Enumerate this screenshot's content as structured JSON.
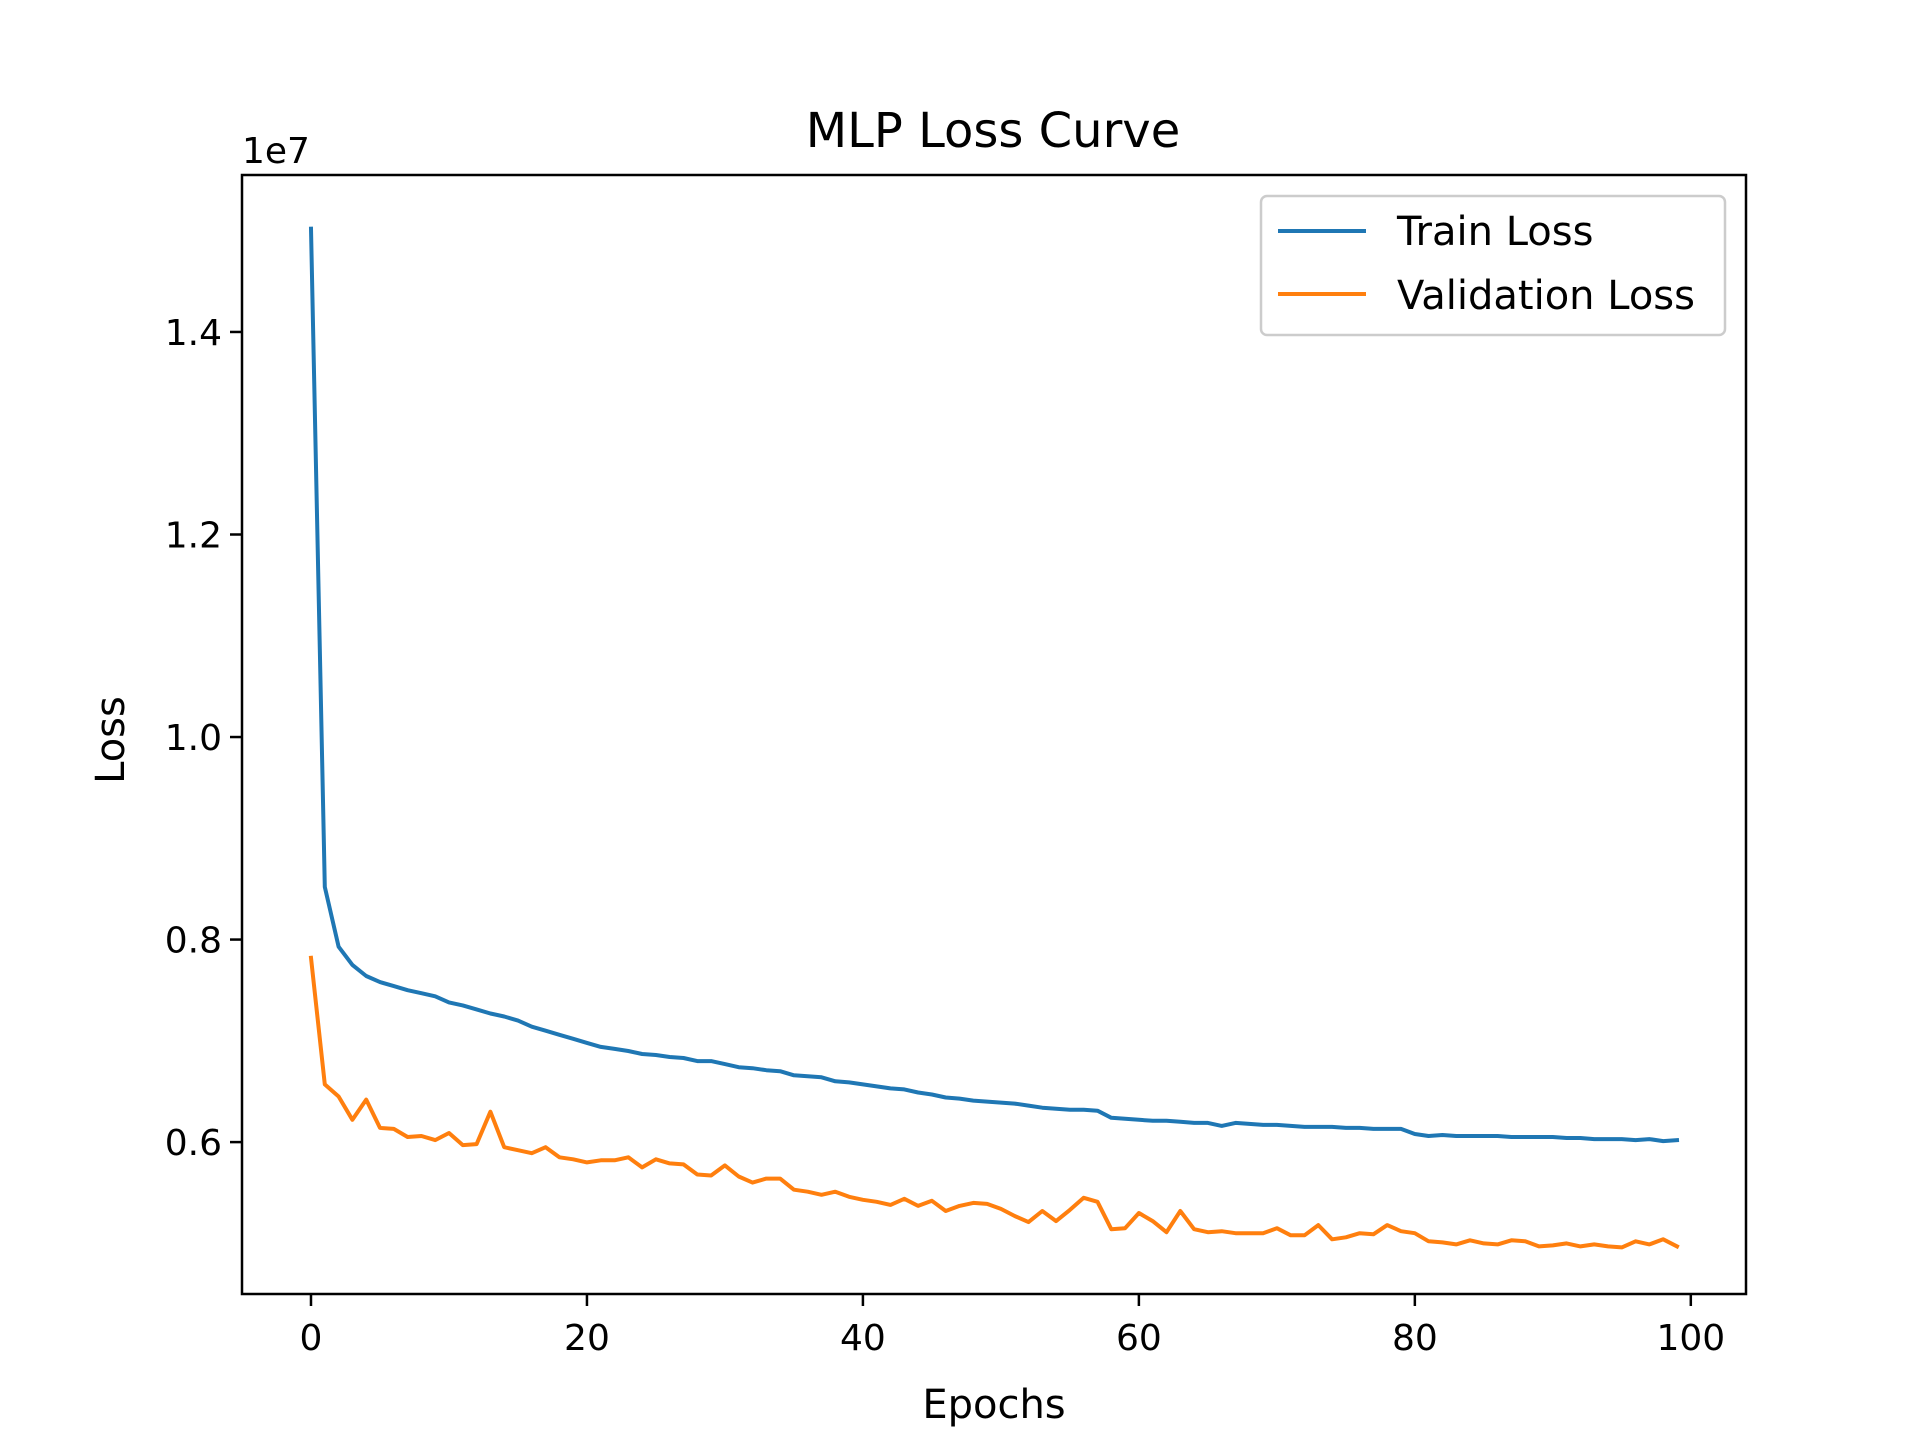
{
  "chart_data": {
    "type": "line",
    "title": "MLP Loss Curve",
    "xlabel": "Epochs",
    "ylabel": "Loss",
    "y_offset_label": "1e7",
    "xlim": [
      -5,
      104
    ],
    "ylim": [
      0.45,
      1.555
    ],
    "xticks": [
      0,
      20,
      40,
      60,
      80,
      100
    ],
    "xtick_labels": [
      "0",
      "20",
      "40",
      "60",
      "80",
      "100"
    ],
    "yticks": [
      0.6,
      0.8,
      1.0,
      1.2,
      1.4
    ],
    "ytick_labels": [
      "0.6",
      "0.8",
      "1.0",
      "1.2",
      "1.4"
    ],
    "grid": false,
    "legend_position": "top-right",
    "x": [
      0,
      1,
      2,
      3,
      4,
      5,
      6,
      7,
      8,
      9,
      10,
      11,
      12,
      13,
      14,
      15,
      16,
      17,
      18,
      19,
      20,
      21,
      22,
      23,
      24,
      25,
      26,
      27,
      28,
      29,
      30,
      31,
      32,
      33,
      34,
      35,
      36,
      37,
      38,
      39,
      40,
      41,
      42,
      43,
      44,
      45,
      46,
      47,
      48,
      49,
      50,
      51,
      52,
      53,
      54,
      55,
      56,
      57,
      58,
      59,
      60,
      61,
      62,
      63,
      64,
      65,
      66,
      67,
      68,
      69,
      70,
      71,
      72,
      73,
      74,
      75,
      76,
      77,
      78,
      79,
      80,
      81,
      82,
      83,
      84,
      85,
      86,
      87,
      88,
      89,
      90,
      91,
      92,
      93,
      94,
      95,
      96,
      97,
      98,
      99
    ],
    "series": [
      {
        "name": "Train Loss",
        "color": "#1f77b4",
        "values": [
          1.502,
          0.852,
          0.793,
          0.775,
          0.764,
          0.758,
          0.754,
          0.75,
          0.747,
          0.744,
          0.738,
          0.735,
          0.731,
          0.727,
          0.724,
          0.72,
          0.714,
          0.71,
          0.706,
          0.702,
          0.698,
          0.694,
          0.692,
          0.69,
          0.687,
          0.686,
          0.684,
          0.683,
          0.68,
          0.68,
          0.677,
          0.674,
          0.673,
          0.671,
          0.67,
          0.666,
          0.665,
          0.664,
          0.66,
          0.659,
          0.657,
          0.655,
          0.653,
          0.652,
          0.649,
          0.647,
          0.644,
          0.643,
          0.641,
          0.64,
          0.639,
          0.638,
          0.636,
          0.634,
          0.633,
          0.632,
          0.632,
          0.631,
          0.624,
          0.623,
          0.622,
          0.621,
          0.621,
          0.62,
          0.619,
          0.619,
          0.616,
          0.619,
          0.618,
          0.617,
          0.617,
          0.616,
          0.615,
          0.615,
          0.615,
          0.614,
          0.614,
          0.613,
          0.613,
          0.613,
          0.608,
          0.606,
          0.607,
          0.606,
          0.606,
          0.606,
          0.606,
          0.605,
          0.605,
          0.605,
          0.605,
          0.604,
          0.604,
          0.603,
          0.603,
          0.603,
          0.602,
          0.603,
          0.601,
          0.602
        ]
      },
      {
        "name": "Validation Loss",
        "color": "#ff7f0e",
        "values": [
          0.782,
          0.657,
          0.645,
          0.622,
          0.642,
          0.614,
          0.613,
          0.605,
          0.606,
          0.602,
          0.609,
          0.597,
          0.598,
          0.63,
          0.595,
          0.592,
          0.589,
          0.595,
          0.585,
          0.583,
          0.58,
          0.582,
          0.582,
          0.585,
          0.575,
          0.583,
          0.579,
          0.578,
          0.568,
          0.567,
          0.577,
          0.566,
          0.56,
          0.564,
          0.564,
          0.553,
          0.551,
          0.548,
          0.551,
          0.546,
          0.543,
          0.541,
          0.538,
          0.544,
          0.537,
          0.542,
          0.532,
          0.537,
          0.54,
          0.539,
          0.534,
          0.527,
          0.521,
          0.532,
          0.522,
          0.533,
          0.545,
          0.541,
          0.514,
          0.515,
          0.53,
          0.522,
          0.511,
          0.532,
          0.514,
          0.511,
          0.512,
          0.51,
          0.51,
          0.51,
          0.515,
          0.508,
          0.508,
          0.518,
          0.504,
          0.506,
          0.51,
          0.509,
          0.518,
          0.512,
          0.51,
          0.502,
          0.501,
          0.499,
          0.503,
          0.5,
          0.499,
          0.503,
          0.502,
          0.497,
          0.498,
          0.5,
          0.497,
          0.499,
          0.497,
          0.496,
          0.502,
          0.499,
          0.504,
          0.497
        ]
      }
    ]
  }
}
